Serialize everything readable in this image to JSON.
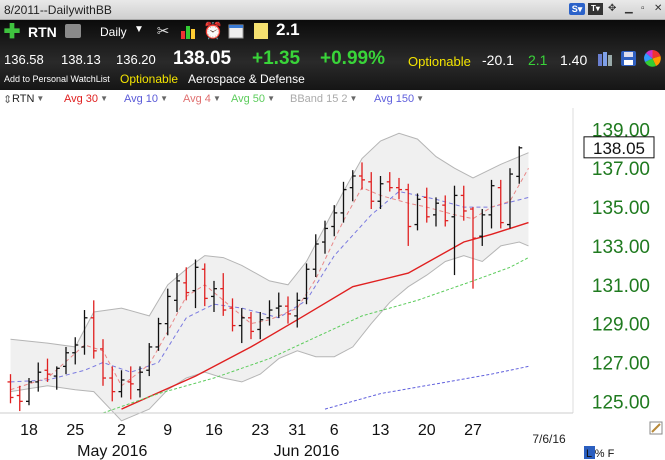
{
  "window": {
    "title": "8/2011--DailywithBB"
  },
  "toolbar": {
    "symbol": "RTN",
    "period": "Daily",
    "value_box": "2.1",
    "open": "136.58",
    "high": "138.13",
    "low": "136.20",
    "last": "138.05",
    "change": "+1.35",
    "change_pct": "+0.99%",
    "optionable": "Optionable",
    "metric1": "-20.1",
    "metric2": "2.1",
    "metric3": "1.40",
    "watchlist": "Add to Personal WatchList",
    "sector": "Aerospace & Defense",
    "optionable2": "Optionable"
  },
  "legend": [
    {
      "label": "RTN",
      "color": "#222222"
    },
    {
      "label": "Avg 30",
      "color": "#e02020"
    },
    {
      "label": "Avg 10",
      "color": "#5a5ad8"
    },
    {
      "label": "Avg 4",
      "color": "#e07070"
    },
    {
      "label": "Avg 50",
      "color": "#5ccc5c"
    },
    {
      "label": "BBand 15 2",
      "color": "#aaaaaa"
    },
    {
      "label": "Avg 150",
      "color": "#6060dd"
    }
  ],
  "status": {
    "date": "7/6/16",
    "scale": "L % F"
  },
  "chart_data": {
    "type": "ohlc",
    "symbol": "RTN",
    "y_ticks": [
      "139.00",
      "137.00",
      "135.00",
      "133.00",
      "131.00",
      "129.00",
      "127.00",
      "125.00"
    ],
    "ylim": [
      124.4,
      140.1
    ],
    "last_label": "138.05",
    "x_ticks": [
      {
        "label": "18",
        "idx": 2
      },
      {
        "label": "25",
        "idx": 7
      },
      {
        "label": "May 2016",
        "idx": 11
      },
      {
        "label": "2",
        "idx": 12
      },
      {
        "label": "9",
        "idx": 17
      },
      {
        "label": "16",
        "idx": 22
      },
      {
        "label": "23",
        "idx": 27
      },
      {
        "label": "Jun 2016",
        "idx": 32
      },
      {
        "label": "31",
        "idx": 31
      },
      {
        "label": "6",
        "idx": 35
      },
      {
        "label": "13",
        "idx": 40
      },
      {
        "label": "20",
        "idx": 45
      },
      {
        "label": "27",
        "idx": 50
      },
      {
        "label": "7/6/16",
        "idx": 55
      }
    ],
    "bars": [
      {
        "o": 126.0,
        "h": 126.4,
        "l": 124.9,
        "c": 125.2
      },
      {
        "o": 125.3,
        "h": 125.8,
        "l": 124.5,
        "c": 125.0
      },
      {
        "o": 125.0,
        "h": 126.2,
        "l": 124.8,
        "c": 126.0
      },
      {
        "o": 126.0,
        "h": 127.0,
        "l": 125.5,
        "c": 126.5
      },
      {
        "o": 126.6,
        "h": 127.2,
        "l": 126.0,
        "c": 126.4
      },
      {
        "o": 126.3,
        "h": 126.8,
        "l": 125.6,
        "c": 126.7
      },
      {
        "o": 126.8,
        "h": 127.8,
        "l": 126.4,
        "c": 127.5
      },
      {
        "o": 127.5,
        "h": 128.3,
        "l": 126.9,
        "c": 127.9
      },
      {
        "o": 127.8,
        "h": 129.7,
        "l": 127.4,
        "c": 129.3
      },
      {
        "o": 129.3,
        "h": 130.2,
        "l": 127.2,
        "c": 127.6
      },
      {
        "o": 127.7,
        "h": 128.2,
        "l": 125.8,
        "c": 126.2
      },
      {
        "o": 126.2,
        "h": 126.8,
        "l": 125.0,
        "c": 125.5
      },
      {
        "o": 125.5,
        "h": 126.6,
        "l": 125.2,
        "c": 126.1
      },
      {
        "o": 126.0,
        "h": 126.8,
        "l": 125.1,
        "c": 125.9
      },
      {
        "o": 125.6,
        "h": 126.8,
        "l": 125.2,
        "c": 126.5
      },
      {
        "o": 126.6,
        "h": 128.0,
        "l": 126.3,
        "c": 127.8
      },
      {
        "o": 127.8,
        "h": 129.3,
        "l": 127.6,
        "c": 129.0
      },
      {
        "o": 129.0,
        "h": 130.8,
        "l": 128.4,
        "c": 130.4
      },
      {
        "o": 130.2,
        "h": 131.6,
        "l": 129.6,
        "c": 131.2
      },
      {
        "o": 131.1,
        "h": 131.9,
        "l": 130.2,
        "c": 130.6
      },
      {
        "o": 130.7,
        "h": 132.3,
        "l": 129.8,
        "c": 131.9
      },
      {
        "o": 131.8,
        "h": 132.1,
        "l": 129.9,
        "c": 130.3
      },
      {
        "o": 130.4,
        "h": 131.2,
        "l": 129.6,
        "c": 130.8
      },
      {
        "o": 130.8,
        "h": 131.6,
        "l": 129.4,
        "c": 129.7
      },
      {
        "o": 129.8,
        "h": 130.3,
        "l": 128.6,
        "c": 128.9
      },
      {
        "o": 128.9,
        "h": 129.8,
        "l": 128.0,
        "c": 129.3
      },
      {
        "o": 129.3,
        "h": 129.6,
        "l": 128.2,
        "c": 128.6
      },
      {
        "o": 128.7,
        "h": 129.6,
        "l": 128.2,
        "c": 129.2
      },
      {
        "o": 129.3,
        "h": 130.2,
        "l": 128.9,
        "c": 129.7
      },
      {
        "o": 129.8,
        "h": 130.6,
        "l": 129.3,
        "c": 129.9
      },
      {
        "o": 129.9,
        "h": 130.4,
        "l": 129.0,
        "c": 129.5
      },
      {
        "o": 129.4,
        "h": 130.6,
        "l": 128.8,
        "c": 130.2
      },
      {
        "o": 130.3,
        "h": 132.1,
        "l": 130.0,
        "c": 131.8
      },
      {
        "o": 131.8,
        "h": 133.6,
        "l": 131.4,
        "c": 133.1
      },
      {
        "o": 133.2,
        "h": 134.3,
        "l": 132.6,
        "c": 133.9
      },
      {
        "o": 134.0,
        "h": 135.1,
        "l": 133.5,
        "c": 134.7
      },
      {
        "o": 134.7,
        "h": 136.3,
        "l": 134.2,
        "c": 135.9
      },
      {
        "o": 136.0,
        "h": 136.9,
        "l": 135.3,
        "c": 136.6
      },
      {
        "o": 136.6,
        "h": 137.3,
        "l": 135.9,
        "c": 136.4
      },
      {
        "o": 136.3,
        "h": 136.8,
        "l": 134.9,
        "c": 135.3
      },
      {
        "o": 135.3,
        "h": 136.6,
        "l": 134.9,
        "c": 136.2
      },
      {
        "o": 136.3,
        "h": 136.8,
        "l": 135.8,
        "c": 136.0
      },
      {
        "o": 136.0,
        "h": 136.5,
        "l": 135.4,
        "c": 135.9
      },
      {
        "o": 135.9,
        "h": 136.2,
        "l": 133.0,
        "c": 134.0
      },
      {
        "o": 134.1,
        "h": 135.7,
        "l": 133.8,
        "c": 135.4
      },
      {
        "o": 135.5,
        "h": 136.0,
        "l": 134.2,
        "c": 134.5
      },
      {
        "o": 134.6,
        "h": 135.5,
        "l": 134.0,
        "c": 135.2
      },
      {
        "o": 135.1,
        "h": 135.6,
        "l": 134.0,
        "c": 134.3
      },
      {
        "o": 134.5,
        "h": 136.1,
        "l": 131.5,
        "c": 135.6
      },
      {
        "o": 135.6,
        "h": 136.1,
        "l": 134.3,
        "c": 134.8
      },
      {
        "o": 134.9,
        "h": 135.0,
        "l": 130.8,
        "c": 133.4
      },
      {
        "o": 133.5,
        "h": 134.9,
        "l": 133.0,
        "c": 134.6
      },
      {
        "o": 134.6,
        "h": 136.4,
        "l": 133.9,
        "c": 136.1
      },
      {
        "o": 136.0,
        "h": 136.4,
        "l": 133.9,
        "c": 134.2
      },
      {
        "o": 134.1,
        "h": 137.0,
        "l": 133.9,
        "c": 136.7
      },
      {
        "o": 136.58,
        "h": 138.13,
        "l": 136.2,
        "c": 138.05
      }
    ],
    "series": [
      {
        "name": "Avg 30",
        "color": "#e02020",
        "dash": "",
        "data": [
          [
            12,
            124.6
          ],
          [
            20,
            126.3
          ],
          [
            26,
            127.8
          ],
          [
            31,
            129.2
          ],
          [
            37,
            130.9
          ],
          [
            43,
            131.6
          ],
          [
            49,
            133.2
          ],
          [
            52,
            133.6
          ],
          [
            56,
            134.2
          ]
        ]
      },
      {
        "name": "Avg 50",
        "color": "#5ccc5c",
        "dash": "3,2",
        "data": [
          [
            10,
            124.4
          ],
          [
            16,
            125.4
          ],
          [
            22,
            126.2
          ],
          [
            28,
            127.2
          ],
          [
            33,
            128.3
          ],
          [
            38,
            129.4
          ],
          [
            44,
            130.2
          ],
          [
            50,
            131.2
          ],
          [
            54,
            131.9
          ],
          [
            56,
            132.4
          ]
        ]
      },
      {
        "name": "Avg 150",
        "color": "#6060dd",
        "dash": "3,2",
        "data": [
          [
            34,
            124.6
          ],
          [
            40,
            125.4
          ],
          [
            46,
            125.9
          ],
          [
            52,
            126.4
          ],
          [
            56,
            126.8
          ]
        ]
      },
      {
        "name": "Avg 10",
        "color": "#7a7ae0",
        "dash": "4,3",
        "data": [
          [
            0,
            126.0
          ],
          [
            4,
            126.1
          ],
          [
            8,
            126.6
          ],
          [
            10,
            127.0
          ],
          [
            13,
            126.5
          ],
          [
            16,
            127.0
          ],
          [
            19,
            129.3
          ],
          [
            22,
            130.0
          ],
          [
            25,
            129.8
          ],
          [
            29,
            129.3
          ],
          [
            32,
            130.2
          ],
          [
            35,
            132.5
          ],
          [
            39,
            134.6
          ],
          [
            42,
            135.8
          ],
          [
            46,
            135.4
          ],
          [
            49,
            135.0
          ],
          [
            52,
            135.0
          ],
          [
            56,
            135.5
          ]
        ]
      },
      {
        "name": "Avg 4",
        "color": "#e88888",
        "dash": "4,3",
        "data": [
          [
            0,
            125.6
          ],
          [
            4,
            126.2
          ],
          [
            8,
            127.9
          ],
          [
            10,
            127.6
          ],
          [
            12,
            125.8
          ],
          [
            15,
            126.9
          ],
          [
            17,
            128.6
          ],
          [
            19,
            130.4
          ],
          [
            21,
            131.0
          ],
          [
            23,
            130.2
          ],
          [
            26,
            129.0
          ],
          [
            28,
            129.2
          ],
          [
            31,
            129.8
          ],
          [
            33,
            131.3
          ],
          [
            36,
            134.3
          ],
          [
            38,
            136.0
          ],
          [
            40,
            135.6
          ],
          [
            43,
            135.2
          ],
          [
            45,
            135.0
          ],
          [
            48,
            134.6
          ],
          [
            50,
            134.4
          ],
          [
            52,
            135.0
          ],
          [
            54,
            135.3
          ],
          [
            56,
            137.0
          ]
        ]
      }
    ],
    "bband_upper": [
      [
        0,
        128.2
      ],
      [
        4,
        128.0
      ],
      [
        7,
        127.8
      ],
      [
        9,
        129.6
      ],
      [
        12,
        129.8
      ],
      [
        15,
        129.4
      ],
      [
        17,
        131.0
      ],
      [
        19,
        131.8
      ],
      [
        21,
        132.5
      ],
      [
        23,
        132.4
      ],
      [
        25,
        132.0
      ],
      [
        28,
        131.2
      ],
      [
        30,
        131.0
      ],
      [
        32,
        132.2
      ],
      [
        34,
        134.0
      ],
      [
        36,
        135.8
      ],
      [
        38,
        137.5
      ],
      [
        40,
        138.4
      ],
      [
        42,
        138.8
      ],
      [
        44,
        138.5
      ],
      [
        46,
        137.6
      ],
      [
        48,
        137.0
      ],
      [
        50,
        136.5
      ],
      [
        53,
        137.2
      ],
      [
        55,
        137.6
      ],
      [
        56,
        137.8
      ]
    ],
    "bband_lower": [
      [
        0,
        125.5
      ],
      [
        4,
        125.8
      ],
      [
        7,
        125.6
      ],
      [
        9,
        125.5
      ],
      [
        12,
        124.0
      ],
      [
        15,
        124.6
      ],
      [
        17,
        125.6
      ],
      [
        19,
        126.2
      ],
      [
        21,
        126.5
      ],
      [
        23,
        126.2
      ],
      [
        25,
        126.0
      ],
      [
        27,
        126.4
      ],
      [
        29,
        127.2
      ],
      [
        31,
        127.6
      ],
      [
        33,
        127.3
      ],
      [
        35,
        127.3
      ],
      [
        37,
        127.8
      ],
      [
        39,
        129.0
      ],
      [
        41,
        130.1
      ],
      [
        43,
        130.9
      ],
      [
        45,
        131.5
      ],
      [
        47,
        132.2
      ],
      [
        49,
        132.5
      ],
      [
        51,
        132.2
      ],
      [
        53,
        133.0
      ],
      [
        55,
        133.2
      ],
      [
        56,
        133.0
      ]
    ]
  }
}
